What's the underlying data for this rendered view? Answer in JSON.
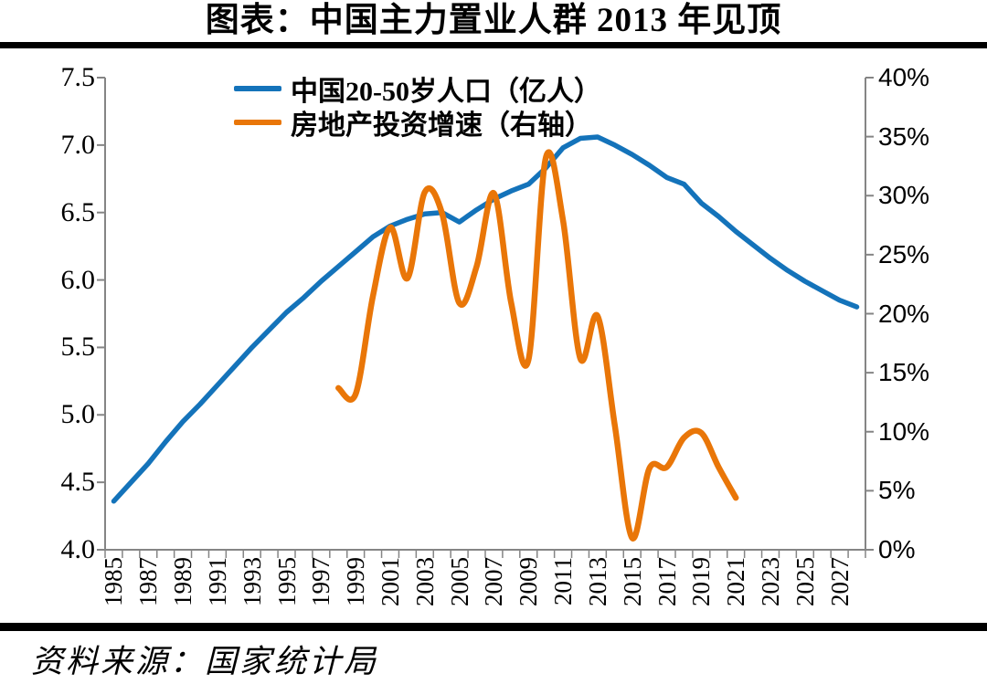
{
  "page": {
    "title": "图表：中国主力置业人群 2013 年见顶",
    "source": "资料来源：国家统计局"
  },
  "legend": [
    {
      "label": "中国20-50岁人口（亿人）"
    },
    {
      "label": "房地产投资增速（右轴）"
    }
  ],
  "chart_data": {
    "type": "line",
    "title": "图表：中国主力置业人群 2013 年见顶",
    "grid": false,
    "legend_position": "top-left-inside",
    "x_axis": {
      "first_year": 1985,
      "last_year": 2028,
      "tick_every_years": 1,
      "label_every_years": 2,
      "tick_labels": [
        "1985",
        "1987",
        "1989",
        "1991",
        "1993",
        "1995",
        "1997",
        "1999",
        "2001",
        "2003",
        "2005",
        "2007",
        "2009",
        "2011",
        "2013",
        "2015",
        "2017",
        "2019",
        "2021",
        "2023",
        "2025",
        "2027"
      ]
    },
    "left_axis": {
      "min": 4.0,
      "max": 7.5,
      "step": 0.5,
      "tick_labels": [
        "7.5",
        "7.0",
        "6.5",
        "6.0",
        "5.5",
        "5.0",
        "4.5",
        "4.0"
      ]
    },
    "right_axis": {
      "min": 0,
      "max": 40,
      "step": 5,
      "tick_labels": [
        "40%",
        "35%",
        "30%",
        "25%",
        "20%",
        "15%",
        "10%",
        "5%",
        "0%"
      ]
    },
    "axis_color": "#858585",
    "series": [
      {
        "name": "中国20-50岁人口（亿人）",
        "axis": "left",
        "unit": "亿人",
        "color": "#1473BA",
        "smooth": false,
        "stroke_width": 5.5,
        "points": [
          [
            1985,
            4.36
          ],
          [
            1986,
            4.5
          ],
          [
            1987,
            4.64
          ],
          [
            1988,
            4.8
          ],
          [
            1989,
            4.95
          ],
          [
            1990,
            5.08
          ],
          [
            1991,
            5.22
          ],
          [
            1992,
            5.36
          ],
          [
            1993,
            5.5
          ],
          [
            1994,
            5.63
          ],
          [
            1995,
            5.76
          ],
          [
            1996,
            5.87
          ],
          [
            1997,
            5.99
          ],
          [
            1998,
            6.1
          ],
          [
            1999,
            6.21
          ],
          [
            2000,
            6.32
          ],
          [
            2001,
            6.4
          ],
          [
            2002,
            6.45
          ],
          [
            2003,
            6.49
          ],
          [
            2004,
            6.5
          ],
          [
            2005,
            6.43
          ],
          [
            2006,
            6.52
          ],
          [
            2007,
            6.6
          ],
          [
            2008,
            6.66
          ],
          [
            2009,
            6.71
          ],
          [
            2010,
            6.83
          ],
          [
            2011,
            6.98
          ],
          [
            2012,
            7.05
          ],
          [
            2013,
            7.06
          ],
          [
            2014,
            7.0
          ],
          [
            2015,
            6.93
          ],
          [
            2016,
            6.85
          ],
          [
            2017,
            6.76
          ],
          [
            2018,
            6.71
          ],
          [
            2019,
            6.57
          ],
          [
            2020,
            6.47
          ],
          [
            2021,
            6.36
          ],
          [
            2022,
            6.26
          ],
          [
            2023,
            6.16
          ],
          [
            2024,
            6.07
          ],
          [
            2025,
            5.99
          ],
          [
            2026,
            5.92
          ],
          [
            2027,
            5.85
          ],
          [
            2028,
            5.8
          ]
        ]
      },
      {
        "name": "房地产投资增速（右轴）",
        "axis": "right",
        "unit": "%",
        "color": "#E97608",
        "smooth": true,
        "stroke_width": 6.5,
        "points": [
          [
            1998,
            13.7
          ],
          [
            1999,
            13.2
          ],
          [
            2000,
            21.5
          ],
          [
            2001,
            27.3
          ],
          [
            2002,
            23.0
          ],
          [
            2003,
            30.3
          ],
          [
            2004,
            28.5
          ],
          [
            2005,
            20.9
          ],
          [
            2006,
            24.0
          ],
          [
            2007,
            30.2
          ],
          [
            2008,
            20.9
          ],
          [
            2009,
            16.1
          ],
          [
            2010,
            33.2
          ],
          [
            2011,
            27.9
          ],
          [
            2012,
            16.2
          ],
          [
            2013,
            19.8
          ],
          [
            2014,
            10.5
          ],
          [
            2015,
            1.0
          ],
          [
            2016,
            6.9
          ],
          [
            2017,
            7.0
          ],
          [
            2018,
            9.5
          ],
          [
            2019,
            9.9
          ],
          [
            2020,
            7.0
          ],
          [
            2021,
            4.4
          ]
        ]
      }
    ]
  }
}
